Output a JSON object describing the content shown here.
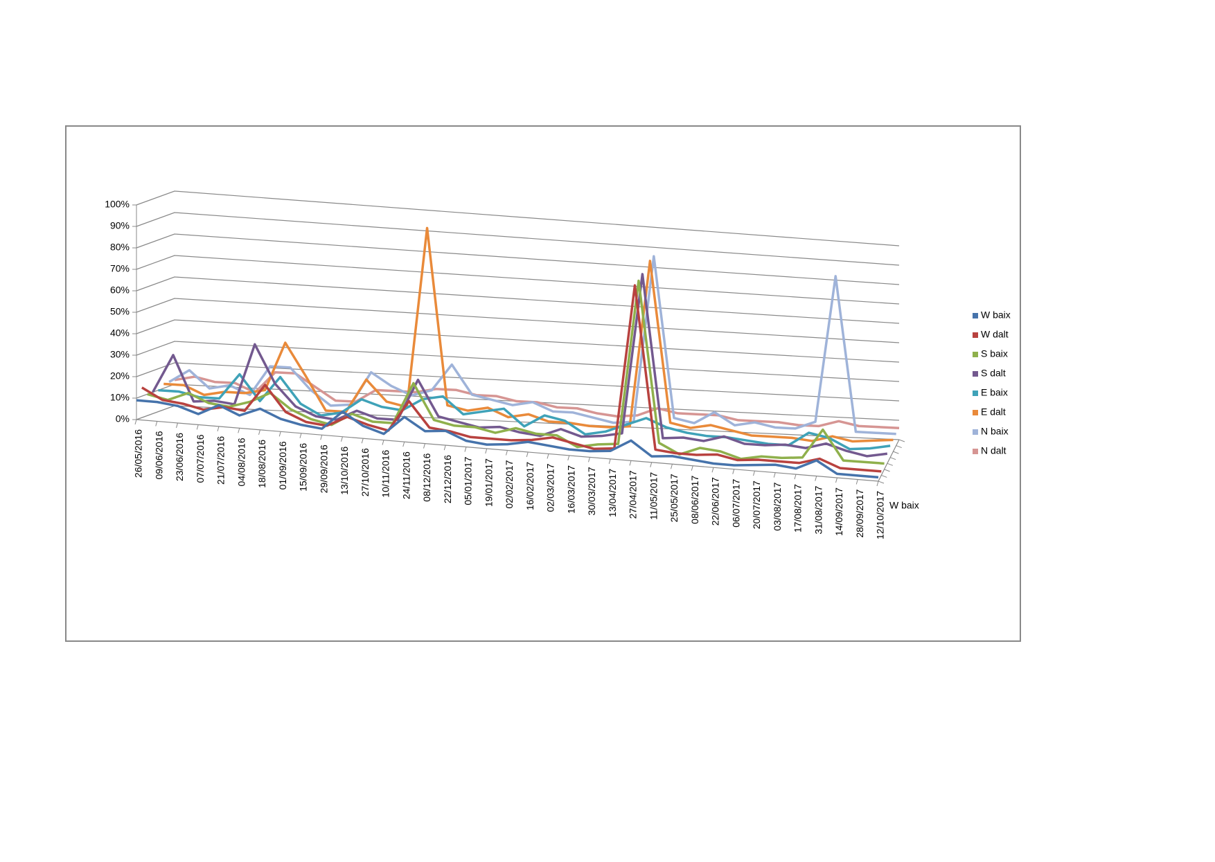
{
  "chart_data": {
    "type": "line3d",
    "categories": [
      "26/05/2016",
      "09/06/2016",
      "23/06/2016",
      "07/07/2016",
      "21/07/2016",
      "04/08/2016",
      "18/08/2016",
      "01/09/2016",
      "15/09/2016",
      "29/09/2016",
      "13/10/2016",
      "27/10/2016",
      "10/11/2016",
      "24/11/2016",
      "08/12/2016",
      "22/12/2016",
      "05/01/2017",
      "19/01/2017",
      "02/02/2017",
      "16/02/2017",
      "02/03/2017",
      "16/03/2017",
      "30/03/2017",
      "13/04/2017",
      "27/04/2017",
      "11/05/2017",
      "25/05/2017",
      "08/06/2017",
      "22/06/2017",
      "06/07/2017",
      "20/07/2017",
      "03/08/2017",
      "17/08/2017",
      "31/08/2017",
      "14/09/2017",
      "28/09/2017",
      "12/10/2017"
    ],
    "series": [
      {
        "name": "W baix",
        "color": "#4673ab",
        "values": [
          9,
          9,
          8,
          5,
          10,
          6,
          10,
          6,
          4,
          3,
          12,
          6,
          3,
          12,
          6,
          7,
          3,
          2,
          3,
          5,
          4,
          3,
          3,
          4,
          10,
          3,
          4,
          3,
          2,
          2,
          3,
          4,
          3,
          8,
          2,
          2,
          2
        ]
      },
      {
        "name": "W dalt",
        "color": "#b8423f",
        "values": [
          14,
          9,
          8,
          6,
          8,
          7,
          20,
          8,
          4,
          3,
          8,
          5,
          3,
          18,
          6,
          5,
          3,
          3,
          3,
          4,
          6,
          4,
          2,
          3,
          85,
          4,
          3,
          3,
          4,
          2,
          3,
          3,
          3,
          6,
          2,
          2,
          2
        ]
      },
      {
        "name": "S baix",
        "color": "#8fb04c",
        "values": [
          10,
          8,
          12,
          8,
          7,
          10,
          15,
          8,
          4,
          2,
          8,
          5,
          5,
          25,
          8,
          6,
          6,
          4,
          7,
          5,
          5,
          0,
          2,
          3,
          85,
          5,
          0,
          4,
          3,
          0,
          2,
          2,
          3,
          18,
          3,
          3,
          3
        ]
      },
      {
        "name": "S dalt",
        "color": "#73598f",
        "values": [
          10,
          28,
          7,
          8,
          7,
          36,
          18,
          8,
          4,
          3,
          8,
          5,
          5,
          25,
          8,
          6,
          4,
          5,
          3,
          2,
          6,
          3,
          4,
          6,
          86,
          5,
          6,
          5,
          8,
          5,
          5,
          6,
          5,
          8,
          5,
          3,
          5
        ]
      },
      {
        "name": "E baix",
        "color": "#3fa2b8",
        "values": [
          10,
          10,
          8,
          8,
          20,
          8,
          20,
          8,
          3,
          5,
          12,
          9,
          8,
          14,
          16,
          8,
          10,
          12,
          4,
          10,
          8,
          2,
          4,
          8,
          12,
          8,
          6,
          5,
          5,
          4,
          3,
          3,
          10,
          8,
          3,
          4,
          6
        ]
      },
      {
        "name": "E dalt",
        "color": "#e98a3a",
        "values": [
          12,
          12,
          8,
          10,
          10,
          12,
          35,
          20,
          4,
          4,
          20,
          10,
          8,
          95,
          10,
          8,
          10,
          6,
          8,
          5,
          5,
          4,
          4,
          5,
          88,
          8,
          6,
          8,
          6,
          4,
          4,
          4,
          3,
          6,
          4,
          5,
          6
        ]
      },
      {
        "name": "N baix",
        "color": "#9fb3d9",
        "values": [
          12,
          18,
          10,
          12,
          8,
          22,
          22,
          12,
          5,
          6,
          22,
          16,
          12,
          15,
          28,
          14,
          12,
          10,
          12,
          8,
          8,
          6,
          4,
          5,
          88,
          8,
          6,
          12,
          6,
          8,
          6,
          6,
          10,
          85,
          6,
          6,
          6
        ]
      },
      {
        "name": "N dalt",
        "color": "#d69593",
        "values": [
          12,
          14,
          12,
          12,
          8,
          18,
          18,
          12,
          6,
          6,
          12,
          12,
          12,
          14,
          14,
          12,
          12,
          10,
          10,
          8,
          8,
          6,
          5,
          6,
          10,
          8,
          8,
          8,
          6,
          6,
          6,
          5,
          5,
          8,
          6,
          6,
          6
        ]
      }
    ],
    "ylim": [
      0,
      100
    ],
    "yticks": [
      {
        "value": 0,
        "label": "0%"
      },
      {
        "value": 10,
        "label": "10%"
      },
      {
        "value": 20,
        "label": "20%"
      },
      {
        "value": 30,
        "label": "30%"
      },
      {
        "value": 40,
        "label": "40%"
      },
      {
        "value": 50,
        "label": "50%"
      },
      {
        "value": 60,
        "label": "60%"
      },
      {
        "value": 70,
        "label": "70%"
      },
      {
        "value": 80,
        "label": "80%"
      },
      {
        "value": 90,
        "label": "90%"
      },
      {
        "value": 100,
        "label": "100%"
      }
    ],
    "grid": true,
    "legend": "right"
  }
}
